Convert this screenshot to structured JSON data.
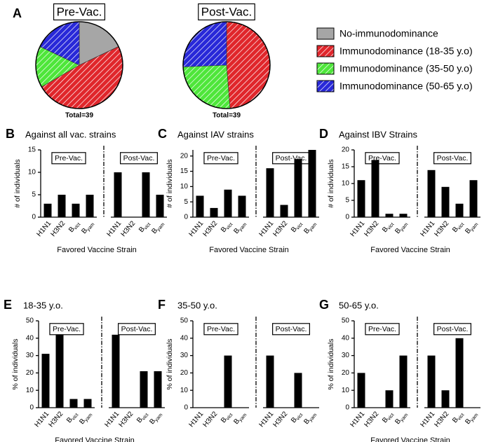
{
  "chart_data": [
    {
      "type": "pie",
      "letter": "A",
      "title": "Pre-Vac.",
      "note": "Total=39",
      "categories": [
        "No-immunodominance",
        "Immunodominance (18-35 y.o)",
        "Immunodominance (35-50 y.o)",
        "Immunodominance (50-65 y.o)"
      ],
      "colors": [
        "#a6a6a6",
        "#e0262b",
        "#4ee63a",
        "#2828d8"
      ],
      "hatch": [
        false,
        true,
        true,
        true
      ],
      "values": [
        7,
        19,
        6,
        7
      ]
    },
    {
      "type": "pie",
      "title": "Post-Vac.",
      "note": "Total=39",
      "colors": [
        "#e0262b",
        "#4ee63a",
        "#2828d8"
      ],
      "hatch": [
        true,
        true,
        true
      ],
      "values": [
        19,
        10,
        10
      ]
    },
    {
      "type": "bar",
      "letter": "B",
      "title": "Against all vac. strains",
      "ylabel": "# of individuals",
      "xlabel": "Favored Vaccine Strain",
      "categories": [
        "H1N1",
        "H3N2",
        [
          "B",
          "vict"
        ],
        [
          "B",
          "yam"
        ]
      ],
      "series": [
        {
          "name": "Pre-Vac.",
          "color": "#000000",
          "values": [
            3,
            5,
            3,
            5
          ]
        },
        {
          "name": "Post-Vac.",
          "color": "#000000",
          "values": [
            10,
            0,
            10,
            5
          ]
        }
      ],
      "ylim": [
        0,
        15
      ],
      "yticks": [
        0,
        5,
        10,
        15
      ]
    },
    {
      "type": "bar",
      "letter": "C",
      "title": "Against IAV strains",
      "ylabel": "# of individuals",
      "xlabel": "Favored Vaccine Strain",
      "categories": [
        "H1N1",
        "H3N2",
        [
          "B",
          "vict"
        ],
        [
          "B",
          "yam"
        ]
      ],
      "series": [
        {
          "name": "Pre-Vac.",
          "color": "#000000",
          "values": [
            7,
            3,
            9,
            7
          ]
        },
        {
          "name": "Post-Vac.",
          "color": "#000000",
          "values": [
            16,
            4,
            19,
            22
          ]
        }
      ],
      "ylim": [
        0,
        22
      ],
      "yticks": [
        0,
        5,
        10,
        15,
        20
      ]
    },
    {
      "type": "bar",
      "letter": "D",
      "title": "Against IBV Strains",
      "ylabel": "# of individuals",
      "xlabel": "Favored Vaccine Strain",
      "categories": [
        "H1N1",
        "H3N2",
        [
          "B",
          "vict"
        ],
        [
          "B",
          "yam"
        ]
      ],
      "series": [
        {
          "name": "Pre-Vac.",
          "color": "#000000",
          "values": [
            11,
            17,
            1,
            1
          ]
        },
        {
          "name": "Post-Vac.",
          "color": "#000000",
          "values": [
            14,
            9,
            4,
            11
          ]
        }
      ],
      "ylim": [
        0,
        20
      ],
      "yticks": [
        0,
        5,
        10,
        15,
        20
      ]
    },
    {
      "type": "bar",
      "letter": "E",
      "title": "18-35 y.o.",
      "ylabel": "% of individuals",
      "xlabel": "Favored Vaccine Strain",
      "categories": [
        "H1N1",
        "H3N2",
        [
          "B",
          "vict"
        ],
        [
          "B",
          "yam"
        ]
      ],
      "series": [
        {
          "name": "Pre-Vac.",
          "color": "#000000",
          "values": [
            31,
            42,
            5,
            5
          ]
        },
        {
          "name": "Post-Vac.",
          "color": "#000000",
          "values": [
            42,
            0,
            21,
            21
          ]
        }
      ],
      "ylim": [
        0,
        50
      ],
      "yticks": [
        0,
        10,
        20,
        30,
        40,
        50
      ]
    },
    {
      "type": "bar",
      "letter": "F",
      "title": "35-50 y.o.",
      "ylabel": "% of individuals",
      "categories": [
        "H1N1",
        "H3N2",
        [
          "B",
          "vict"
        ],
        [
          "B",
          "yam"
        ]
      ],
      "series": [
        {
          "name": "Pre-Vac.",
          "color": "#000000",
          "values": [
            0,
            0,
            30,
            0
          ]
        },
        {
          "name": "Post-Vac.",
          "color": "#000000",
          "values": [
            30,
            0,
            20,
            0
          ]
        }
      ],
      "ylim": [
        0,
        50
      ],
      "yticks": [
        0,
        10,
        20,
        30,
        40,
        50
      ]
    },
    {
      "type": "bar",
      "letter": "G",
      "title": "50-65 y.o.",
      "ylabel": "% of individuals",
      "xlabel": "Favored Vaccine Strain",
      "categories": [
        "H1N1",
        "H3N2",
        [
          "B",
          "vict"
        ],
        [
          "B",
          "yam"
        ]
      ],
      "series": [
        {
          "name": "Pre-Vac.",
          "color": "#000000",
          "values": [
            20,
            0,
            10,
            30
          ]
        },
        {
          "name": "Post-Vac.",
          "color": "#000000",
          "values": [
            30,
            10,
            40,
            0
          ]
        }
      ],
      "ylim": [
        0,
        50
      ],
      "yticks": [
        0,
        10,
        20,
        30,
        40,
        50
      ]
    }
  ]
}
